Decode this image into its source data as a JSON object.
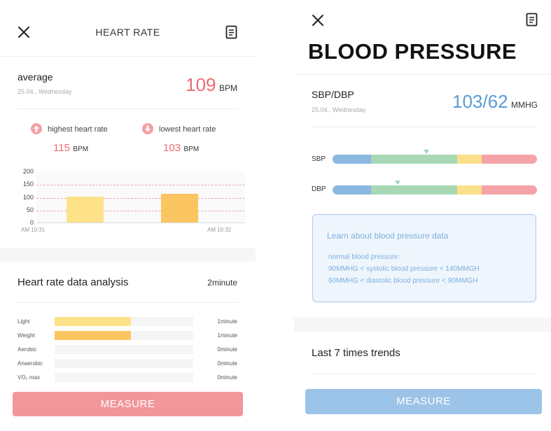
{
  "heart_rate": {
    "title": "HEART RATE",
    "average": {
      "label": "average",
      "date": "25.04.,  Wednesday",
      "value": "109",
      "unit": "BPM"
    },
    "highest": {
      "label": "highest heart rate",
      "value": "115",
      "unit": "BPM"
    },
    "lowest": {
      "label": "lowest heart rate",
      "value": "103",
      "unit": "BPM"
    },
    "chart_data": {
      "type": "bar",
      "title": "",
      "xlabel": "",
      "ylabel": "",
      "categories": [
        "AM 10:31",
        "AM 10:32"
      ],
      "values": [
        103,
        115
      ],
      "colors": [
        "#fde28a",
        "#fbc661"
      ],
      "y_ticks": [
        "200",
        "150",
        "100",
        "50",
        "0"
      ],
      "ylim": [
        0,
        200
      ],
      "reference_lines": [
        150,
        100,
        50
      ],
      "grid": false
    },
    "analysis": {
      "title": "Heart rate data analysis",
      "total": "2minute",
      "zones": [
        {
          "label": "Light",
          "value": "1minute",
          "fraction": 0.55,
          "color": "#fde28a"
        },
        {
          "label": "Weight",
          "value": "1minute",
          "fraction": 0.55,
          "color": "#fbc661"
        },
        {
          "label": "Aerobic",
          "value": "0minute",
          "fraction": 0,
          "color": "#f5f5f5"
        },
        {
          "label": "Anaerobic",
          "value": "0minute",
          "fraction": 0,
          "color": "#f5f5f5"
        },
        {
          "label": "VO₂ max",
          "value": "0minute",
          "fraction": 0,
          "color": "#f5f5f5"
        }
      ]
    },
    "measure_label": "MEASURE",
    "colors": {
      "accent": "#ee6b73",
      "measure_bg": "#f2969b",
      "ref_line": "#f3a7a7"
    }
  },
  "blood_pressure": {
    "title": "BLOOD PRESSURE",
    "reading": {
      "label": "SBP/DBP",
      "date": "25.04.,  Wednesday",
      "value": "103/62",
      "unit": "MMHG"
    },
    "sbp": {
      "label": "SBP",
      "marker_fraction": 0.46
    },
    "dbp": {
      "label": "DBP",
      "marker_fraction": 0.32
    },
    "scale_segments": [
      {
        "color": "#8bb8e0",
        "fraction": 0.19
      },
      {
        "color": "#a8d8b6",
        "fraction": 0.42
      },
      {
        "color": "#fae08a",
        "fraction": 0.12
      },
      {
        "color": "#f4a3a8",
        "fraction": 0.27
      }
    ],
    "info": {
      "title": "Learn about blood pressure data",
      "line1": "normal blood pressure:",
      "line2": "90MMHG < systolic blood pressure < 140MMGH",
      "line3": "60MMHG < diastolic blood pressure < 90MMGH"
    },
    "trends_label": "Last 7 times trends",
    "measure_label": "MEASURE",
    "colors": {
      "accent": "#5b9bd5",
      "measure_bg": "#9cc3e8",
      "info_bg": "#eef5fc",
      "info_border": "#a9cbea",
      "info_text": "#7fb0de"
    }
  }
}
